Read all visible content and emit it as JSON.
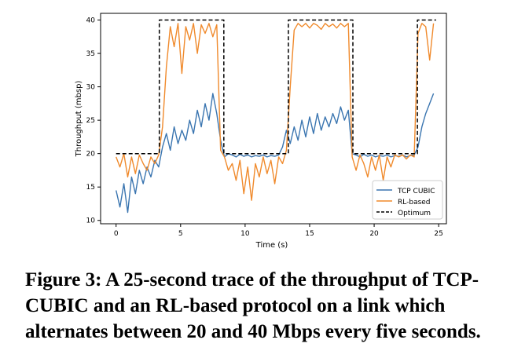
{
  "chart_data": {
    "type": "line",
    "title": "",
    "xlabel": "Time (s)",
    "ylabel": "Throughput (mbsp)",
    "xlim": [
      -1.2,
      25.6
    ],
    "ylim": [
      9.5,
      41
    ],
    "xticks": [
      0,
      5,
      10,
      15,
      20,
      25
    ],
    "yticks": [
      10,
      15,
      20,
      25,
      30,
      35,
      40
    ],
    "grid": false,
    "legend_position": "lower-right",
    "series": [
      {
        "name": "TCP CUBIC",
        "color": "#3a75b0",
        "style": "solid",
        "x": [
          0,
          0.3,
          0.6,
          0.9,
          1.2,
          1.5,
          1.8,
          2.1,
          2.4,
          2.7,
          3.0,
          3.3,
          3.6,
          3.9,
          4.2,
          4.5,
          4.8,
          5.1,
          5.4,
          5.7,
          6.0,
          6.3,
          6.6,
          6.9,
          7.2,
          7.5,
          7.8,
          8.1,
          8.4,
          8.7,
          9.0,
          9.3,
          9.6,
          9.9,
          10.2,
          10.5,
          10.8,
          11.1,
          11.4,
          11.7,
          12.0,
          12.3,
          12.6,
          12.9,
          13.2,
          13.5,
          13.8,
          14.1,
          14.4,
          14.7,
          15.0,
          15.3,
          15.6,
          15.9,
          16.2,
          16.5,
          16.8,
          17.1,
          17.4,
          17.7,
          18.0,
          18.3,
          18.6,
          18.9,
          19.2,
          19.5,
          19.8,
          20.1,
          20.4,
          20.7,
          21.0,
          21.3,
          21.6,
          21.9,
          22.2,
          22.5,
          22.8,
          23.1,
          23.4,
          23.7,
          24.0,
          24.3,
          24.6
        ],
        "values": [
          14.5,
          12.0,
          15.5,
          11.2,
          16.5,
          14.0,
          17.5,
          15.5,
          18.0,
          16.5,
          19.0,
          18.0,
          21.0,
          23.0,
          20.5,
          24.0,
          21.5,
          23.5,
          22.0,
          25.0,
          23.0,
          26.5,
          24.0,
          27.5,
          25.0,
          29.0,
          26.0,
          22.0,
          19.5,
          20.0,
          19.8,
          19.5,
          19.9,
          19.6,
          19.8,
          19.5,
          19.7,
          19.6,
          19.8,
          19.5,
          19.7,
          19.6,
          19.8,
          21.0,
          23.5,
          21.5,
          24.0,
          22.0,
          25.0,
          22.5,
          25.5,
          23.0,
          26.0,
          23.5,
          25.5,
          24.0,
          26.0,
          24.5,
          27.0,
          25.0,
          26.5,
          20.0,
          19.8,
          19.5,
          19.9,
          19.6,
          19.8,
          19.5,
          19.7,
          19.6,
          19.8,
          19.5,
          19.7,
          19.6,
          19.8,
          19.5,
          19.7,
          19.8,
          21.0,
          24.0,
          26.0,
          27.5,
          29.0
        ]
      },
      {
        "name": "RL-based",
        "color": "#f08a2c",
        "style": "solid",
        "x": [
          0,
          0.3,
          0.6,
          0.9,
          1.2,
          1.5,
          1.8,
          2.1,
          2.4,
          2.7,
          3.0,
          3.3,
          3.6,
          3.9,
          4.2,
          4.5,
          4.8,
          5.1,
          5.4,
          5.7,
          6.0,
          6.3,
          6.6,
          6.9,
          7.2,
          7.5,
          7.8,
          8.1,
          8.4,
          8.7,
          9.0,
          9.3,
          9.6,
          9.9,
          10.2,
          10.5,
          10.8,
          11.1,
          11.4,
          11.7,
          12.0,
          12.3,
          12.6,
          12.9,
          13.2,
          13.5,
          13.8,
          14.1,
          14.4,
          14.7,
          15.0,
          15.3,
          15.6,
          15.9,
          16.2,
          16.5,
          16.8,
          17.1,
          17.4,
          17.7,
          18.0,
          18.3,
          18.6,
          18.9,
          19.2,
          19.5,
          19.8,
          20.1,
          20.4,
          20.7,
          21.0,
          21.3,
          21.6,
          21.9,
          22.2,
          22.5,
          22.8,
          23.1,
          23.4,
          23.7,
          24.0,
          24.3,
          24.6
        ],
        "values": [
          19.5,
          18.0,
          20.0,
          16.5,
          19.5,
          17.0,
          19.8,
          18.5,
          17.5,
          19.5,
          18.5,
          19.8,
          24.0,
          33.0,
          39.0,
          36.0,
          39.5,
          32.0,
          39.0,
          37.0,
          39.5,
          35.0,
          39.3,
          38.0,
          39.5,
          37.5,
          39.3,
          20.5,
          19.5,
          17.5,
          18.5,
          16.0,
          19.0,
          14.0,
          18.0,
          13.0,
          18.5,
          16.5,
          19.5,
          17.0,
          19.0,
          15.5,
          19.5,
          18.5,
          20.5,
          30.0,
          38.5,
          39.5,
          39.0,
          39.5,
          38.8,
          39.5,
          39.2,
          38.6,
          39.5,
          39.0,
          39.4,
          38.8,
          39.5,
          39.0,
          39.5,
          19.5,
          17.5,
          19.8,
          18.5,
          16.5,
          19.5,
          17.5,
          19.8,
          16.0,
          19.5,
          18.0,
          19.8,
          19.5,
          19.8,
          19.2,
          19.8,
          19.5,
          38.0,
          39.5,
          39.0,
          34.0,
          39.5
        ]
      },
      {
        "name": "Optimum",
        "color": "#000000",
        "style": "dashed",
        "x": [
          0,
          3.35,
          3.35,
          8.35,
          8.35,
          13.35,
          13.35,
          18.35,
          18.35,
          23.35,
          23.35,
          24.8
        ],
        "values": [
          20,
          20,
          40,
          40,
          20,
          20,
          40,
          40,
          20,
          20,
          40,
          40
        ]
      }
    ]
  },
  "caption": "Figure 3: A 25-second trace of the throughput of TCP-CUBIC and an RL-based protocol on a link which alternates between 20 and 40 Mbps every five seconds."
}
